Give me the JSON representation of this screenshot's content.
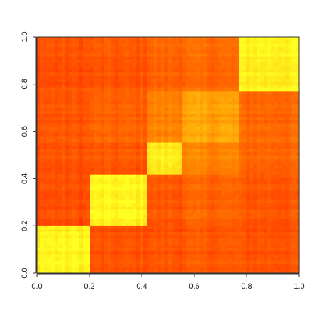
{
  "chart_data": {
    "type": "heatmap",
    "title": "",
    "xlabel": "",
    "ylabel": "",
    "xlim": [
      0,
      1
    ],
    "ylim": [
      0,
      1
    ],
    "x_ticks": [
      0.0,
      0.2,
      0.4,
      0.6,
      0.8,
      1.0
    ],
    "y_ticks": [
      0.0,
      0.2,
      0.4,
      0.6,
      0.8,
      1.0
    ],
    "x_tick_labels": [
      "0.0",
      "0.2",
      "0.4",
      "0.6",
      "0.8",
      "1.0"
    ],
    "y_tick_labels": [
      "0.0",
      "0.2",
      "0.4",
      "0.6",
      "0.8",
      "1.0"
    ],
    "grid": false,
    "legend": "none",
    "colormap": "heat",
    "block_boundaries": [
      0.0,
      0.205,
      0.415,
      0.555,
      0.77,
      1.0
    ],
    "block_intensity": [
      [
        0.95,
        0.18,
        0.2,
        0.22,
        0.2
      ],
      [
        0.18,
        0.95,
        0.22,
        0.28,
        0.22
      ],
      [
        0.2,
        0.22,
        0.92,
        0.45,
        0.3
      ],
      [
        0.22,
        0.28,
        0.45,
        0.6,
        0.32
      ],
      [
        0.2,
        0.22,
        0.3,
        0.32,
        0.95
      ]
    ],
    "colors": {
      "low": "#ff2a00",
      "mid": "#ff8c00",
      "high": "#ffff20"
    }
  }
}
